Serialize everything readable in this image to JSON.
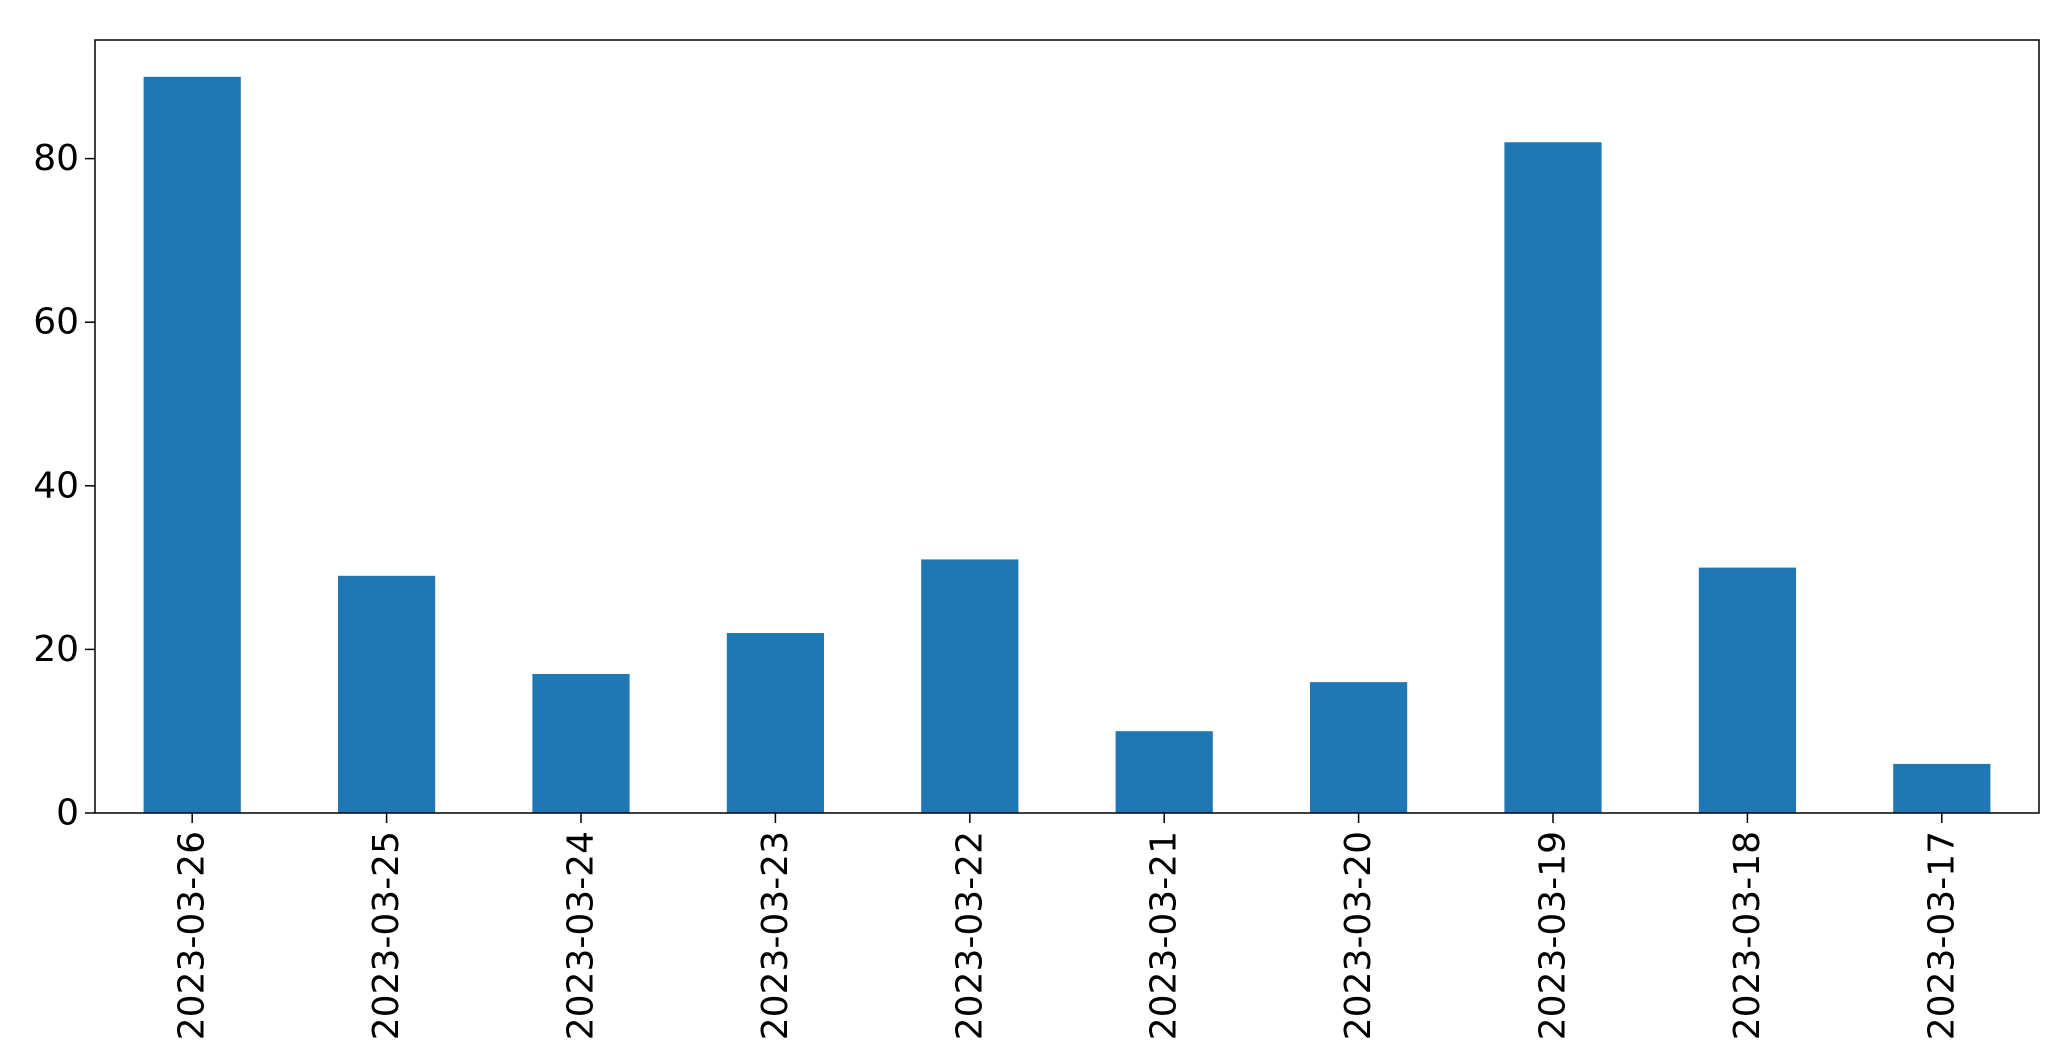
{
  "chart_data": {
    "type": "bar",
    "title": "",
    "xlabel": "",
    "ylabel": "",
    "categories": [
      "2023-03-26",
      "2023-03-25",
      "2023-03-24",
      "2023-03-23",
      "2023-03-22",
      "2023-03-21",
      "2023-03-20",
      "2023-03-19",
      "2023-03-18",
      "2023-03-17"
    ],
    "values": [
      90,
      29,
      17,
      22,
      31,
      10,
      16,
      82,
      30,
      6
    ],
    "ylim": [
      0,
      94.5
    ],
    "yticks": [
      0,
      20,
      40,
      60,
      80
    ],
    "bar_color": "#1f77b4",
    "grid": false,
    "legend": "none"
  }
}
